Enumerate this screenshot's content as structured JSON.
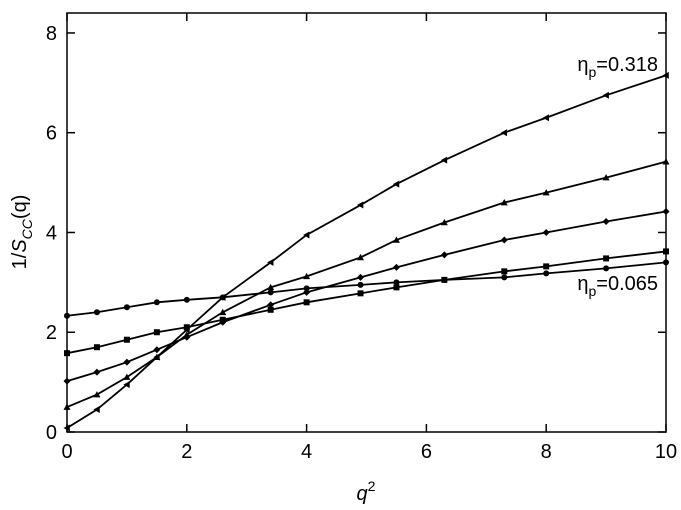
{
  "chart_data": {
    "type": "line",
    "x_label_parts": [
      "q",
      "2"
    ],
    "y_label_parts": [
      "1/",
      "S",
      "CC",
      "(q)"
    ],
    "annotations": [
      [
        "η",
        "p",
        "=0.318"
      ],
      [
        "η",
        "p",
        "=0.065"
      ]
    ],
    "x": [
      0,
      0.5,
      1,
      1.5,
      2,
      2.6,
      3.4,
      4,
      4.9,
      5.5,
      6.3,
      7.3,
      8,
      9,
      10
    ],
    "series": [
      {
        "color": "#000000",
        "marker": "circle",
        "values": [
          2.33,
          2.4,
          2.5,
          2.6,
          2.65,
          2.7,
          2.8,
          2.88,
          2.95,
          3.0,
          3.05,
          3.1,
          3.18,
          3.28,
          3.4
        ]
      },
      {
        "color": "#000000",
        "marker": "square",
        "values": [
          1.58,
          1.7,
          1.85,
          2.0,
          2.1,
          2.25,
          2.45,
          2.6,
          2.78,
          2.9,
          3.05,
          3.22,
          3.32,
          3.48,
          3.62
        ]
      },
      {
        "color": "#000000",
        "marker": "diamond",
        "values": [
          1.02,
          1.2,
          1.4,
          1.65,
          1.9,
          2.2,
          2.55,
          2.8,
          3.1,
          3.3,
          3.55,
          3.85,
          4.0,
          4.22,
          4.42
        ]
      },
      {
        "color": "#000000",
        "marker": "triangle-up",
        "values": [
          0.5,
          0.75,
          1.1,
          1.5,
          1.95,
          2.4,
          2.9,
          3.12,
          3.5,
          3.85,
          4.2,
          4.6,
          4.8,
          5.1,
          5.42
        ]
      },
      {
        "color": "#000000",
        "marker": "triangle-left",
        "values": [
          0.08,
          0.45,
          0.95,
          1.5,
          2.05,
          2.7,
          3.4,
          3.95,
          4.55,
          4.97,
          5.45,
          6.0,
          6.3,
          6.75,
          7.15
        ]
      }
    ],
    "xlim": [
      0,
      10
    ],
    "ylim": [
      0,
      8.4
    ],
    "xticks": [
      0,
      2,
      4,
      6,
      8,
      10
    ],
    "yticks": [
      0,
      2,
      4,
      6,
      8
    ],
    "grid": false
  }
}
